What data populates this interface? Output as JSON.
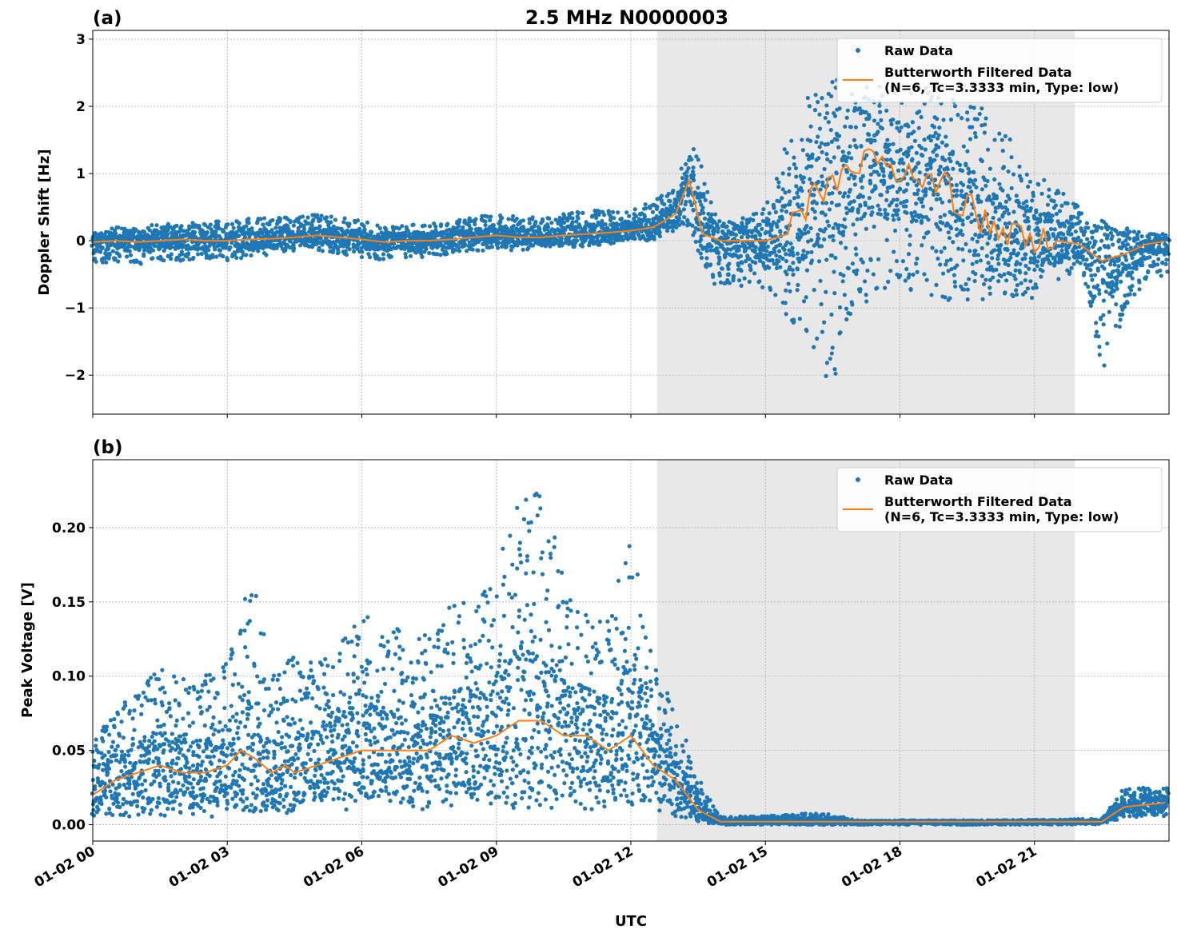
{
  "chart_data": [
    {
      "type": "scatter",
      "panel_label": "(a)",
      "title": "2.5 MHz N0000003",
      "xlabel": "",
      "ylabel": "Doppler Shift [Hz]",
      "xlim_hours": [
        0,
        24
      ],
      "ylim": [
        -2.58,
        3.13
      ],
      "yticks": [
        -2,
        -1,
        0,
        1,
        2,
        3
      ],
      "ytick_labels": [
        "−2",
        "−1",
        "0",
        "1",
        "2",
        "3"
      ],
      "grid": true,
      "legend_placement": "top-right",
      "shaded_interval": [
        "01-02 12:35",
        "01-02 21:54"
      ],
      "colors": {
        "raw": "#1f77b4",
        "filtered": "#ff7f0e",
        "shade": "#e8e8e8"
      },
      "series": [
        {
          "name": "Raw Data",
          "kind": "scatter",
          "envelope_columns": [
            "hour",
            "min",
            "max"
          ],
          "envelope": [
            [
              0,
              -0.35,
              0.15
            ],
            [
              0.5,
              -0.3,
              0.2
            ],
            [
              1,
              -0.35,
              0.2
            ],
            [
              1.5,
              -0.3,
              0.25
            ],
            [
              2,
              -0.3,
              0.25
            ],
            [
              2.5,
              -0.25,
              0.3
            ],
            [
              3,
              -0.3,
              0.3
            ],
            [
              3.5,
              -0.25,
              0.35
            ],
            [
              4,
              -0.2,
              0.35
            ],
            [
              4.5,
              -0.15,
              0.35
            ],
            [
              5,
              -0.15,
              0.4
            ],
            [
              5.5,
              -0.2,
              0.35
            ],
            [
              6,
              -0.25,
              0.3
            ],
            [
              6.5,
              -0.3,
              0.2
            ],
            [
              7,
              -0.25,
              0.25
            ],
            [
              7.5,
              -0.25,
              0.25
            ],
            [
              8,
              -0.2,
              0.3
            ],
            [
              8.5,
              -0.15,
              0.35
            ],
            [
              9,
              -0.15,
              0.4
            ],
            [
              9.5,
              -0.15,
              0.35
            ],
            [
              10,
              -0.1,
              0.35
            ],
            [
              10.5,
              -0.1,
              0.4
            ],
            [
              11,
              -0.1,
              0.45
            ],
            [
              11.5,
              -0.05,
              0.45
            ],
            [
              12,
              0,
              0.5
            ],
            [
              12.5,
              0,
              0.6
            ],
            [
              13,
              0.1,
              0.8
            ],
            [
              13.3,
              0.1,
              1.5
            ],
            [
              13.6,
              -0.5,
              1.2
            ],
            [
              14,
              -0.7,
              0.3
            ],
            [
              14.5,
              -0.7,
              0.4
            ],
            [
              15,
              -0.7,
              0.5
            ],
            [
              15.5,
              -1.2,
              1.5
            ],
            [
              16,
              -1.5,
              2.3
            ],
            [
              16.5,
              -2.3,
              2.4
            ],
            [
              17,
              -1.0,
              2.5
            ],
            [
              17.5,
              -0.8,
              2.4
            ],
            [
              18,
              -0.8,
              2.3
            ],
            [
              18.5,
              -0.8,
              2.3
            ],
            [
              19,
              -0.9,
              2.2
            ],
            [
              19.5,
              -0.9,
              2.0
            ],
            [
              20,
              -1.0,
              2.0
            ],
            [
              20.5,
              -0.9,
              1.5
            ],
            [
              21,
              -0.9,
              1.0
            ],
            [
              21.5,
              -0.6,
              0.8
            ],
            [
              22,
              -0.4,
              0.5
            ],
            [
              22.5,
              -1.9,
              0.4
            ],
            [
              23,
              -1.2,
              0.2
            ],
            [
              23.5,
              -0.6,
              0.1
            ],
            [
              24,
              -0.5,
              0.1
            ]
          ]
        },
        {
          "name": "Butterworth Filtered Data\n(N=6, Tc=3.3333 min, Type: low)",
          "kind": "line",
          "points": [
            [
              0,
              -0.02
            ],
            [
              0.5,
              0
            ],
            [
              1,
              -0.02
            ],
            [
              1.5,
              0
            ],
            [
              2,
              0.02
            ],
            [
              2.5,
              0
            ],
            [
              3,
              0
            ],
            [
              3.5,
              0.02
            ],
            [
              4,
              0.03
            ],
            [
              4.5,
              0.05
            ],
            [
              5,
              0.08
            ],
            [
              5.5,
              0.05
            ],
            [
              6,
              0.02
            ],
            [
              6.5,
              -0.02
            ],
            [
              7,
              0
            ],
            [
              7.5,
              0
            ],
            [
              8,
              0.02
            ],
            [
              8.5,
              0.05
            ],
            [
              9,
              0.08
            ],
            [
              9.5,
              0.05
            ],
            [
              10,
              0.05
            ],
            [
              10.5,
              0.08
            ],
            [
              11,
              0.1
            ],
            [
              11.5,
              0.12
            ],
            [
              12,
              0.15
            ],
            [
              12.5,
              0.2
            ],
            [
              13,
              0.4
            ],
            [
              13.3,
              0.9
            ],
            [
              13.6,
              0.1
            ],
            [
              14,
              0
            ],
            [
              14.5,
              0
            ],
            [
              15,
              0
            ],
            [
              15.5,
              0.1
            ],
            [
              16,
              0.6
            ],
            [
              16.5,
              0.9
            ],
            [
              17,
              1.1
            ],
            [
              17.5,
              1.2
            ],
            [
              18,
              1.0
            ],
            [
              18.5,
              0.9
            ],
            [
              19,
              0.8
            ],
            [
              19.5,
              0.5
            ],
            [
              20,
              0.2
            ],
            [
              20.5,
              0.05
            ],
            [
              21,
              0
            ],
            [
              21.5,
              0
            ],
            [
              22,
              -0.05
            ],
            [
              22.5,
              -0.3
            ],
            [
              23,
              -0.2
            ],
            [
              23.5,
              -0.05
            ],
            [
              24,
              0
            ]
          ]
        }
      ]
    },
    {
      "type": "scatter",
      "panel_label": "(b)",
      "xlabel": "UTC",
      "ylabel": "Peak Voltage [V]",
      "xlim_hours": [
        0,
        24
      ],
      "ylim": [
        -0.011,
        0.2457
      ],
      "yticks": [
        0,
        0.05,
        0.1,
        0.15,
        0.2
      ],
      "ytick_labels": [
        "0.00",
        "0.05",
        "0.10",
        "0.15",
        "0.20"
      ],
      "xtick_labels": [
        "01-02 00",
        "01-02 03",
        "01-02 06",
        "01-02 09",
        "01-02 12",
        "01-02 15",
        "01-02 18",
        "01-02 21"
      ],
      "grid": true,
      "legend_placement": "top-right",
      "shaded_interval": [
        "01-02 12:35",
        "01-02 21:54"
      ],
      "series": [
        {
          "name": "Raw Data",
          "kind": "scatter",
          "envelope_columns": [
            "hour",
            "min",
            "max"
          ],
          "envelope": [
            [
              0,
              0.005,
              0.055
            ],
            [
              0.5,
              0.005,
              0.08
            ],
            [
              1,
              0.005,
              0.09
            ],
            [
              1.5,
              0.005,
              0.11
            ],
            [
              2,
              0.005,
              0.1
            ],
            [
              2.5,
              0.005,
              0.1
            ],
            [
              3,
              0.005,
              0.11
            ],
            [
              3.3,
              0.008,
              0.17
            ],
            [
              3.6,
              0.008,
              0.165
            ],
            [
              4,
              0.005,
              0.1
            ],
            [
              4.3,
              0.008,
              0.14
            ],
            [
              4.5,
              0.008,
              0.11
            ],
            [
              5,
              0.01,
              0.11
            ],
            [
              5.5,
              0.01,
              0.12
            ],
            [
              6,
              0.01,
              0.15
            ],
            [
              6.5,
              0.01,
              0.13
            ],
            [
              7,
              0.01,
              0.14
            ],
            [
              7.5,
              0.01,
              0.13
            ],
            [
              8,
              0.01,
              0.15
            ],
            [
              8.5,
              0.01,
              0.15
            ],
            [
              9,
              0.01,
              0.18
            ],
            [
              9.5,
              0.01,
              0.22
            ],
            [
              10,
              0.01,
              0.23
            ],
            [
              10.5,
              0.01,
              0.17
            ],
            [
              11,
              0.01,
              0.14
            ],
            [
              11.5,
              0.01,
              0.14
            ],
            [
              12,
              0.01,
              0.2
            ],
            [
              12.5,
              0.01,
              0.11
            ],
            [
              13,
              0.005,
              0.08
            ],
            [
              13.5,
              0.002,
              0.03
            ],
            [
              14,
              0,
              0.005
            ],
            [
              16.3,
              0,
              0.008
            ],
            [
              17,
              0,
              0.003
            ],
            [
              20,
              0,
              0.003
            ],
            [
              22.5,
              0,
              0.004
            ],
            [
              23,
              0.005,
              0.025
            ],
            [
              24,
              0.005,
              0.025
            ]
          ]
        },
        {
          "name": "Butterworth Filtered Data\n(N=6, Tc=3.3333 min, Type: low)",
          "kind": "line",
          "points": [
            [
              0,
              0.02
            ],
            [
              0.5,
              0.03
            ],
            [
              1,
              0.035
            ],
            [
              1.5,
              0.04
            ],
            [
              2,
              0.035
            ],
            [
              2.5,
              0.035
            ],
            [
              3,
              0.04
            ],
            [
              3.3,
              0.05
            ],
            [
              3.6,
              0.045
            ],
            [
              4,
              0.035
            ],
            [
              4.3,
              0.04
            ],
            [
              4.5,
              0.035
            ],
            [
              5,
              0.04
            ],
            [
              5.5,
              0.045
            ],
            [
              6,
              0.05
            ],
            [
              6.5,
              0.05
            ],
            [
              7,
              0.05
            ],
            [
              7.5,
              0.05
            ],
            [
              8,
              0.06
            ],
            [
              8.5,
              0.055
            ],
            [
              9,
              0.06
            ],
            [
              9.5,
              0.07
            ],
            [
              10,
              0.07
            ],
            [
              10.5,
              0.06
            ],
            [
              11,
              0.06
            ],
            [
              11.5,
              0.05
            ],
            [
              12,
              0.06
            ],
            [
              12.5,
              0.04
            ],
            [
              13,
              0.03
            ],
            [
              13.5,
              0.01
            ],
            [
              14,
              0.002
            ],
            [
              22.5,
              0.002
            ],
            [
              23,
              0.012
            ],
            [
              24,
              0.015
            ]
          ]
        }
      ]
    }
  ]
}
